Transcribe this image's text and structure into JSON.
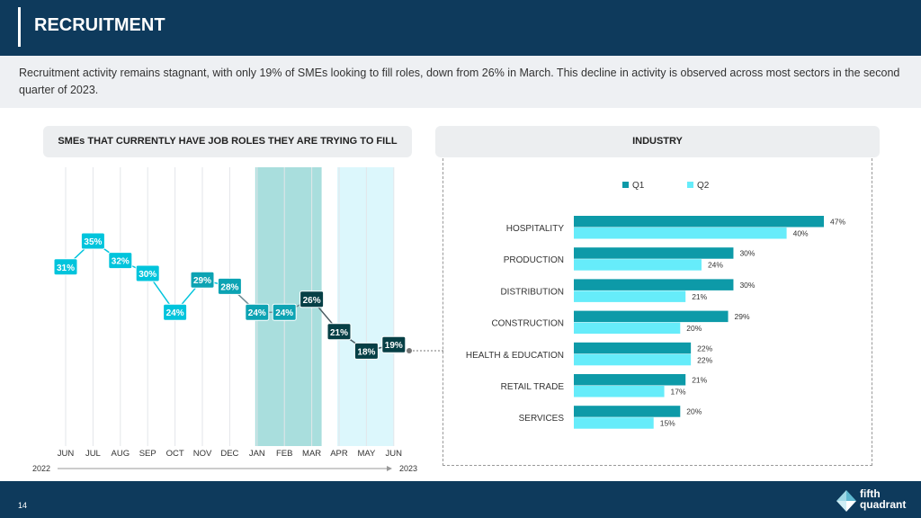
{
  "header": {
    "title": "RECRUITMENT"
  },
  "intro": {
    "text": "Recruitment activity remains stagnant, with only 19% of SMEs looking to fill roles, down from 26% in March. This decline in activity is observed across most sectors in the second quarter of 2023."
  },
  "left_panel": {
    "title": "SMEs THAT CURRENTLY HAVE JOB ROLES THEY ARE TRYING TO FILL",
    "year_start": "2022",
    "year_end": "2023"
  },
  "right_panel": {
    "title": "INDUSTRY"
  },
  "footer": {
    "page_number": "14",
    "logo_line1": "fifth",
    "logo_line2": "quadrant"
  },
  "colors": {
    "navy": "#0e3a5c",
    "cyan": "#00c4dc",
    "teal_mid": "#0ca3b3",
    "dark_teal": "#063f45",
    "q1": "#0d9aa8",
    "q2": "#66ecfa",
    "q1_shade": "#a9dedd",
    "q2_shade": "#dcf7fc"
  },
  "chart_data": [
    {
      "type": "line",
      "title": "SMEs THAT CURRENTLY HAVE JOB ROLES THEY ARE TRYING TO FILL",
      "categories": [
        "JUN",
        "JUL",
        "AUG",
        "SEP",
        "OCT",
        "NOV",
        "DEC",
        "JAN",
        "FEB",
        "MAR",
        "APR",
        "MAY",
        "JUN"
      ],
      "values": [
        31,
        35,
        32,
        30,
        24,
        29,
        28,
        24,
        24,
        26,
        21,
        18,
        19
      ],
      "value_labels": [
        "31%",
        "35%",
        "32%",
        "30%",
        "24%",
        "29%",
        "28%",
        "24%",
        "24%",
        "26%",
        "21%",
        "18%",
        "19%"
      ],
      "shaded_periods": [
        {
          "name": "Q1",
          "categories": [
            "JAN",
            "FEB",
            "MAR"
          ]
        },
        {
          "name": "Q2",
          "categories": [
            "APR",
            "MAY",
            "JUN"
          ]
        }
      ],
      "ylim": [
        15,
        40
      ],
      "grid": true
    },
    {
      "type": "bar",
      "orientation": "horizontal",
      "title": "INDUSTRY",
      "categories": [
        "HOSPITALITY",
        "PRODUCTION",
        "DISTRIBUTION",
        "CONSTRUCTION",
        "HEALTH & EDUCATION",
        "RETAIL TRADE",
        "SERVICES"
      ],
      "series": [
        {
          "name": "Q1",
          "values": [
            47,
            30,
            30,
            29,
            22,
            21,
            20
          ],
          "labels": [
            "47%",
            "30%",
            "30%",
            "29%",
            "22%",
            "21%",
            "20%"
          ]
        },
        {
          "name": "Q2",
          "values": [
            40,
            24,
            21,
            20,
            22,
            17,
            15
          ],
          "labels": [
            "40%",
            "24%",
            "21%",
            "20%",
            "22%",
            "17%",
            "15%"
          ]
        }
      ],
      "xlim": [
        0,
        47
      ],
      "legend": "top"
    }
  ]
}
